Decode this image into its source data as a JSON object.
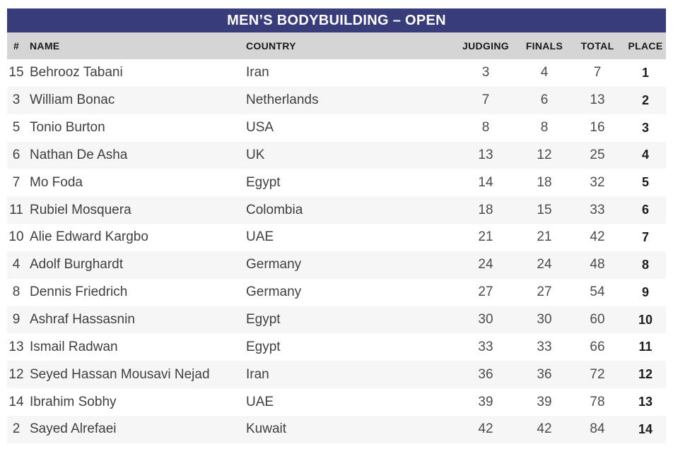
{
  "title": "MEN’S BODYBUILDING – OPEN",
  "colors": {
    "title_bar_bg": "#393c7b",
    "title_text": "#ffffff",
    "header_bg": "#d5d5d5",
    "header_text": "#191919",
    "row_alt_bg": "#f6f6f6",
    "body_text": "#3f3f3f",
    "numeric_text": "#4c4c4c",
    "place_text": "#1c1c1c"
  },
  "table": {
    "columns": [
      {
        "key": "num",
        "label": "#"
      },
      {
        "key": "name",
        "label": "NAME"
      },
      {
        "key": "country",
        "label": "COUNTRY"
      },
      {
        "key": "judging",
        "label": "JUDGING"
      },
      {
        "key": "finals",
        "label": "FINALS"
      },
      {
        "key": "total",
        "label": "TOTAL"
      },
      {
        "key": "place",
        "label": "PLACE"
      }
    ],
    "rows": [
      {
        "num": 15,
        "name": "Behrooz Tabani",
        "country": "Iran",
        "judging": 3,
        "finals": 4,
        "total": 7,
        "place": 1
      },
      {
        "num": 3,
        "name": "William Bonac",
        "country": "Netherlands",
        "judging": 7,
        "finals": 6,
        "total": 13,
        "place": 2
      },
      {
        "num": 5,
        "name": "Tonio Burton",
        "country": "USA",
        "judging": 8,
        "finals": 8,
        "total": 16,
        "place": 3
      },
      {
        "num": 6,
        "name": "Nathan De Asha",
        "country": "UK",
        "judging": 13,
        "finals": 12,
        "total": 25,
        "place": 4
      },
      {
        "num": 7,
        "name": "Mo Foda",
        "country": "Egypt",
        "judging": 14,
        "finals": 18,
        "total": 32,
        "place": 5
      },
      {
        "num": 11,
        "name": "Rubiel Mosquera",
        "country": "Colombia",
        "judging": 18,
        "finals": 15,
        "total": 33,
        "place": 6
      },
      {
        "num": 10,
        "name": "Alie Edward Kargbo",
        "country": "UAE",
        "judging": 21,
        "finals": 21,
        "total": 42,
        "place": 7
      },
      {
        "num": 4,
        "name": "Adolf Burghardt",
        "country": "Germany",
        "judging": 24,
        "finals": 24,
        "total": 48,
        "place": 8
      },
      {
        "num": 8,
        "name": "Dennis Friedrich",
        "country": "Germany",
        "judging": 27,
        "finals": 27,
        "total": 54,
        "place": 9
      },
      {
        "num": 9,
        "name": "Ashraf Hassasnin",
        "country": "Egypt",
        "judging": 30,
        "finals": 30,
        "total": 60,
        "place": 10
      },
      {
        "num": 13,
        "name": "Ismail Radwan",
        "country": "Egypt",
        "judging": 33,
        "finals": 33,
        "total": 66,
        "place": 11
      },
      {
        "num": 12,
        "name": "Seyed Hassan Mousavi Nejad",
        "country": "Iran",
        "judging": 36,
        "finals": 36,
        "total": 72,
        "place": 12
      },
      {
        "num": 14,
        "name": "Ibrahim Sobhy",
        "country": "UAE",
        "judging": 39,
        "finals": 39,
        "total": 78,
        "place": 13
      },
      {
        "num": 2,
        "name": "Sayed Alrefaei",
        "country": "Kuwait",
        "judging": 42,
        "finals": 42,
        "total": 84,
        "place": 14
      }
    ]
  }
}
